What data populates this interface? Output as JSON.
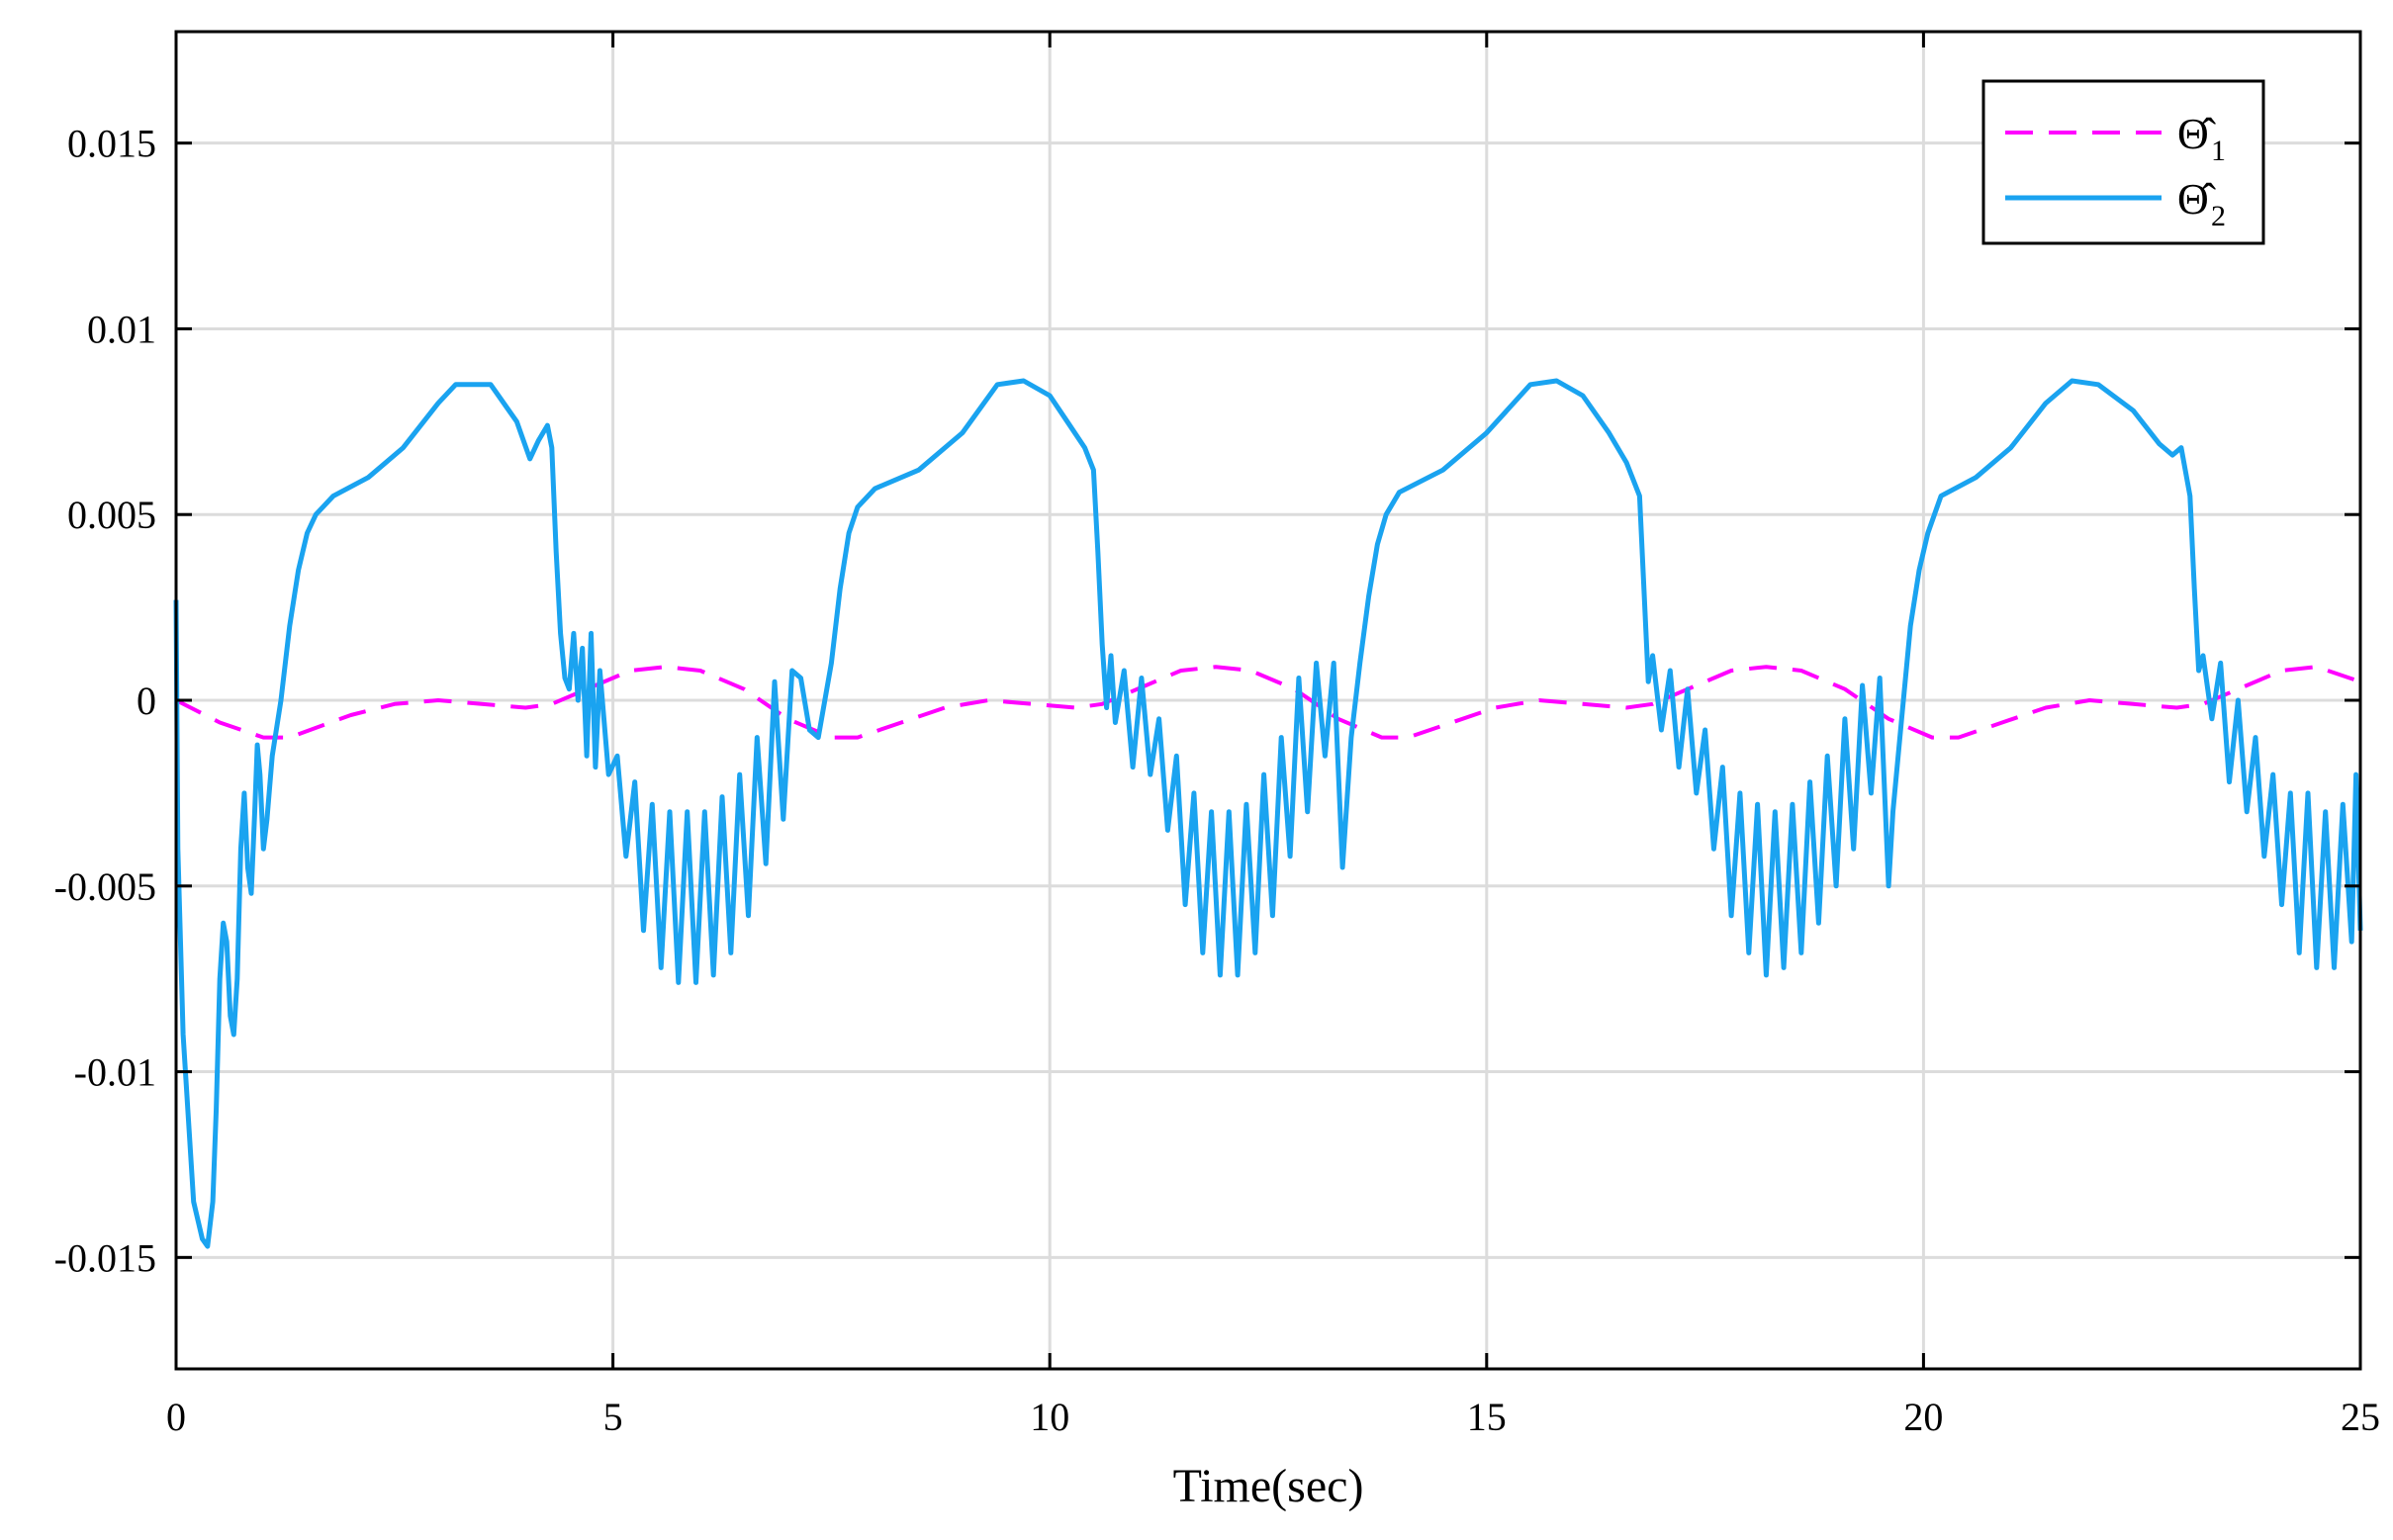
{
  "chart_data": {
    "type": "line",
    "title": "",
    "xlabel": "Time(sec)",
    "ylabel": "",
    "xlim": [
      0,
      25
    ],
    "ylim": [
      -0.018,
      0.018
    ],
    "xticks": [
      0,
      5,
      10,
      15,
      20,
      25
    ],
    "xtick_labels": [
      "0",
      "5",
      "10",
      "15",
      "20",
      "25"
    ],
    "yticks": [
      -0.015,
      -0.01,
      -0.005,
      0,
      0.005,
      0.01,
      0.015
    ],
    "ytick_labels": [
      "-0.015",
      "-0.01",
      "-0.005",
      "0",
      "0.005",
      "0.01",
      "0.015"
    ],
    "grid": true,
    "legend_position": "top-right",
    "series": [
      {
        "name": "Θ̂1",
        "label_main": "Θ̂",
        "label_sub": "1",
        "color": "#FF00FF",
        "style": "dashed",
        "points": [
          [
            0,
            0
          ],
          [
            0.5,
            -0.0006
          ],
          [
            1,
            -0.001
          ],
          [
            1.3,
            -0.001
          ],
          [
            2,
            -0.0004
          ],
          [
            2.5,
            -0.0001
          ],
          [
            3,
            0
          ],
          [
            3.5,
            -0.0001
          ],
          [
            4,
            -0.0002
          ],
          [
            4.3,
            -0.0001
          ],
          [
            4.8,
            0.0004
          ],
          [
            5.2,
            0.0008
          ],
          [
            5.6,
            0.0009
          ],
          [
            6,
            0.0008
          ],
          [
            6.5,
            0.0003
          ],
          [
            7,
            -0.0005
          ],
          [
            7.5,
            -0.001
          ],
          [
            7.8,
            -0.001
          ],
          [
            8.3,
            -0.0006
          ],
          [
            8.8,
            -0.0002
          ],
          [
            9.3,
            0
          ],
          [
            9.8,
            -0.0001
          ],
          [
            10.3,
            -0.0002
          ],
          [
            10.6,
            -0.0001
          ],
          [
            11.1,
            0.0004
          ],
          [
            11.5,
            0.0008
          ],
          [
            11.9,
            0.0009
          ],
          [
            12.3,
            0.0008
          ],
          [
            12.8,
            0.0003
          ],
          [
            13.3,
            -0.0005
          ],
          [
            13.8,
            -0.001
          ],
          [
            14.1,
            -0.001
          ],
          [
            14.6,
            -0.0006
          ],
          [
            15.1,
            -0.0002
          ],
          [
            15.6,
            0
          ],
          [
            16.1,
            -0.0001
          ],
          [
            16.6,
            -0.0002
          ],
          [
            16.9,
            -0.0001
          ],
          [
            17.4,
            0.0004
          ],
          [
            17.8,
            0.0008
          ],
          [
            18.2,
            0.0009
          ],
          [
            18.6,
            0.0008
          ],
          [
            19.1,
            0.0003
          ],
          [
            19.6,
            -0.0005
          ],
          [
            20.1,
            -0.001
          ],
          [
            20.4,
            -0.001
          ],
          [
            20.9,
            -0.0006
          ],
          [
            21.4,
            -0.0002
          ],
          [
            21.9,
            0
          ],
          [
            22.4,
            -0.0001
          ],
          [
            22.9,
            -0.0002
          ],
          [
            23.2,
            -0.0001
          ],
          [
            23.7,
            0.0004
          ],
          [
            24.1,
            0.0008
          ],
          [
            24.5,
            0.0009
          ],
          [
            25,
            0.0005
          ]
        ]
      },
      {
        "name": "Θ̂2",
        "label_main": "Θ̂",
        "label_sub": "2",
        "color": "#1AA3F0",
        "style": "solid",
        "points": [
          [
            0,
            0.0027
          ],
          [
            0.02,
            -0.004
          ],
          [
            0.08,
            -0.009
          ],
          [
            0.2,
            -0.0135
          ],
          [
            0.3,
            -0.0145
          ],
          [
            0.36,
            -0.0147
          ],
          [
            0.42,
            -0.0135
          ],
          [
            0.46,
            -0.011
          ],
          [
            0.5,
            -0.0075
          ],
          [
            0.54,
            -0.006
          ],
          [
            0.58,
            -0.0065
          ],
          [
            0.62,
            -0.0085
          ],
          [
            0.66,
            -0.009
          ],
          [
            0.7,
            -0.0075
          ],
          [
            0.74,
            -0.004
          ],
          [
            0.78,
            -0.0025
          ],
          [
            0.82,
            -0.0045
          ],
          [
            0.86,
            -0.0052
          ],
          [
            0.9,
            -0.003
          ],
          [
            0.93,
            -0.0012
          ],
          [
            0.96,
            -0.002
          ],
          [
            1,
            -0.004
          ],
          [
            1.04,
            -0.0032
          ],
          [
            1.1,
            -0.0015
          ],
          [
            1.2,
            0
          ],
          [
            1.3,
            0.002
          ],
          [
            1.4,
            0.0035
          ],
          [
            1.5,
            0.0045
          ],
          [
            1.6,
            0.005
          ],
          [
            1.8,
            0.0055
          ],
          [
            2.2,
            0.006
          ],
          [
            2.6,
            0.0068
          ],
          [
            3,
            0.008
          ],
          [
            3.2,
            0.0085
          ],
          [
            3.6,
            0.0085
          ],
          [
            3.9,
            0.0075
          ],
          [
            4.05,
            0.0065
          ],
          [
            4.15,
            0.007
          ],
          [
            4.25,
            0.0074
          ],
          [
            4.3,
            0.0068
          ],
          [
            4.35,
            0.004
          ],
          [
            4.4,
            0.0018
          ],
          [
            4.45,
            0.0006
          ],
          [
            4.5,
            0.0003
          ],
          [
            4.55,
            0.0018
          ],
          [
            4.6,
            0
          ],
          [
            4.65,
            0.0014
          ],
          [
            4.7,
            -0.0015
          ],
          [
            4.75,
            0.0018
          ],
          [
            4.8,
            -0.0018
          ],
          [
            4.85,
            0.0008
          ],
          [
            4.95,
            -0.002
          ],
          [
            5.05,
            -0.0015
          ],
          [
            5.15,
            -0.0042
          ],
          [
            5.25,
            -0.0022
          ],
          [
            5.35,
            -0.0062
          ],
          [
            5.45,
            -0.0028
          ],
          [
            5.55,
            -0.0072
          ],
          [
            5.65,
            -0.003
          ],
          [
            5.75,
            -0.0076
          ],
          [
            5.85,
            -0.003
          ],
          [
            5.95,
            -0.0076
          ],
          [
            6.05,
            -0.003
          ],
          [
            6.15,
            -0.0074
          ],
          [
            6.25,
            -0.0026
          ],
          [
            6.35,
            -0.0068
          ],
          [
            6.45,
            -0.002
          ],
          [
            6.55,
            -0.0058
          ],
          [
            6.65,
            -0.001
          ],
          [
            6.75,
            -0.0044
          ],
          [
            6.85,
            0.0005
          ],
          [
            6.95,
            -0.0032
          ],
          [
            7.05,
            0.0008
          ],
          [
            7.15,
            0.0006
          ],
          [
            7.25,
            -0.0008
          ],
          [
            7.35,
            -0.001
          ],
          [
            7.5,
            0.001
          ],
          [
            7.6,
            0.003
          ],
          [
            7.7,
            0.0045
          ],
          [
            7.8,
            0.0052
          ],
          [
            8,
            0.0057
          ],
          [
            8.5,
            0.0062
          ],
          [
            9,
            0.0072
          ],
          [
            9.4,
            0.0085
          ],
          [
            9.7,
            0.0086
          ],
          [
            10,
            0.0082
          ],
          [
            10.2,
            0.0075
          ],
          [
            10.4,
            0.0068
          ],
          [
            10.5,
            0.0062
          ],
          [
            10.55,
            0.004
          ],
          [
            10.6,
            0.0015
          ],
          [
            10.65,
            -0.0002
          ],
          [
            10.7,
            0.0012
          ],
          [
            10.75,
            -0.0006
          ],
          [
            10.85,
            0.0008
          ],
          [
            10.95,
            -0.0018
          ],
          [
            11.05,
            0.0006
          ],
          [
            11.15,
            -0.002
          ],
          [
            11.25,
            -0.0005
          ],
          [
            11.35,
            -0.0035
          ],
          [
            11.45,
            -0.0015
          ],
          [
            11.55,
            -0.0055
          ],
          [
            11.65,
            -0.0025
          ],
          [
            11.75,
            -0.0068
          ],
          [
            11.85,
            -0.003
          ],
          [
            11.95,
            -0.0074
          ],
          [
            12.05,
            -0.003
          ],
          [
            12.15,
            -0.0074
          ],
          [
            12.25,
            -0.0028
          ],
          [
            12.35,
            -0.0068
          ],
          [
            12.45,
            -0.002
          ],
          [
            12.55,
            -0.0058
          ],
          [
            12.65,
            -0.001
          ],
          [
            12.75,
            -0.0042
          ],
          [
            12.85,
            0.0006
          ],
          [
            12.95,
            -0.003
          ],
          [
            13.05,
            0.001
          ],
          [
            13.15,
            -0.0015
          ],
          [
            13.25,
            0.001
          ],
          [
            13.35,
            -0.0045
          ],
          [
            13.45,
            -0.001
          ],
          [
            13.55,
            0.001
          ],
          [
            13.65,
            0.0028
          ],
          [
            13.75,
            0.0042
          ],
          [
            13.85,
            0.005
          ],
          [
            14,
            0.0056
          ],
          [
            14.5,
            0.0062
          ],
          [
            15,
            0.0072
          ],
          [
            15.5,
            0.0085
          ],
          [
            15.8,
            0.0086
          ],
          [
            16.1,
            0.0082
          ],
          [
            16.4,
            0.0072
          ],
          [
            16.6,
            0.0064
          ],
          [
            16.75,
            0.0055
          ],
          [
            16.8,
            0.003
          ],
          [
            16.85,
            0.0005
          ],
          [
            16.9,
            0.0012
          ],
          [
            17,
            -0.0008
          ],
          [
            17.1,
            0.0008
          ],
          [
            17.2,
            -0.0018
          ],
          [
            17.3,
            0.0003
          ],
          [
            17.4,
            -0.0025
          ],
          [
            17.5,
            -0.0008
          ],
          [
            17.6,
            -0.004
          ],
          [
            17.7,
            -0.0018
          ],
          [
            17.8,
            -0.0058
          ],
          [
            17.9,
            -0.0025
          ],
          [
            18,
            -0.0068
          ],
          [
            18.1,
            -0.0028
          ],
          [
            18.2,
            -0.0074
          ],
          [
            18.3,
            -0.003
          ],
          [
            18.4,
            -0.0072
          ],
          [
            18.5,
            -0.0028
          ],
          [
            18.6,
            -0.0068
          ],
          [
            18.7,
            -0.0022
          ],
          [
            18.8,
            -0.006
          ],
          [
            18.9,
            -0.0015
          ],
          [
            19,
            -0.005
          ],
          [
            19.1,
            -0.0005
          ],
          [
            19.2,
            -0.004
          ],
          [
            19.3,
            0.0004
          ],
          [
            19.4,
            -0.0025
          ],
          [
            19.5,
            0.0006
          ],
          [
            19.6,
            -0.005
          ],
          [
            19.65,
            -0.003
          ],
          [
            19.75,
            -0.0005
          ],
          [
            19.85,
            0.002
          ],
          [
            19.95,
            0.0035
          ],
          [
            20.05,
            0.0045
          ],
          [
            20.2,
            0.0055
          ],
          [
            20.6,
            0.006
          ],
          [
            21,
            0.0068
          ],
          [
            21.4,
            0.008
          ],
          [
            21.7,
            0.0086
          ],
          [
            22,
            0.0085
          ],
          [
            22.4,
            0.0078
          ],
          [
            22.7,
            0.0069
          ],
          [
            22.85,
            0.0066
          ],
          [
            22.95,
            0.0068
          ],
          [
            23.05,
            0.0055
          ],
          [
            23.1,
            0.003
          ],
          [
            23.15,
            0.0008
          ],
          [
            23.2,
            0.0012
          ],
          [
            23.3,
            -0.0005
          ],
          [
            23.4,
            0.001
          ],
          [
            23.5,
            -0.0022
          ],
          [
            23.6,
            0
          ],
          [
            23.7,
            -0.003
          ],
          [
            23.8,
            -0.001
          ],
          [
            23.9,
            -0.0042
          ],
          [
            24,
            -0.002
          ],
          [
            24.1,
            -0.0055
          ],
          [
            24.2,
            -0.0025
          ],
          [
            24.3,
            -0.0068
          ],
          [
            24.4,
            -0.0025
          ],
          [
            24.5,
            -0.0072
          ],
          [
            24.6,
            -0.003
          ],
          [
            24.7,
            -0.0072
          ],
          [
            24.8,
            -0.0028
          ],
          [
            24.9,
            -0.0065
          ],
          [
            24.95,
            -0.002
          ],
          [
            25,
            -0.0062
          ]
        ]
      }
    ]
  }
}
